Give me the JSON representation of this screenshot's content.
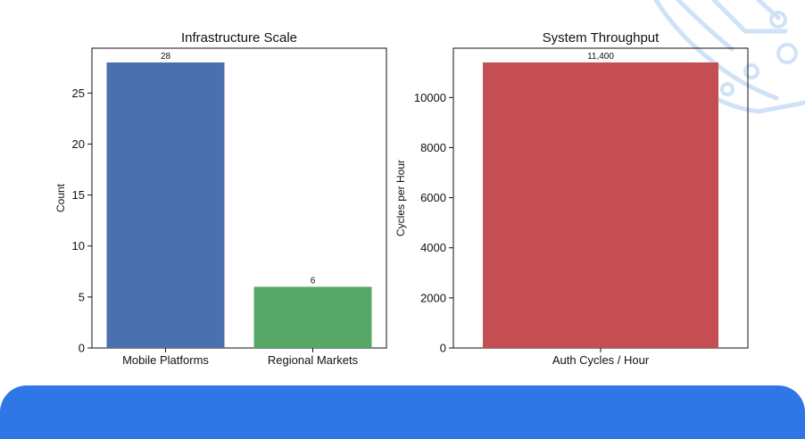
{
  "chart_data": [
    {
      "type": "bar",
      "title": "Infrastructure Scale",
      "xlabel": "",
      "ylabel": "Count",
      "categories": [
        "Mobile Platforms",
        "Regional Markets"
      ],
      "values": [
        28,
        6
      ],
      "data_labels": [
        "28",
        "6"
      ],
      "colors": [
        "#4a71ae",
        "#55a868"
      ],
      "ylim": [
        0,
        29.4
      ],
      "yticks": [
        0,
        5,
        10,
        15,
        20,
        25
      ],
      "grid": false
    },
    {
      "type": "bar",
      "title": "System Throughput",
      "xlabel": "",
      "ylabel": "Cycles per Hour",
      "categories": [
        "Auth Cycles / Hour"
      ],
      "values": [
        11400
      ],
      "data_labels": [
        "11,400"
      ],
      "colors": [
        "#c44e52"
      ],
      "ylim": [
        0,
        11970
      ],
      "yticks": [
        0,
        2000,
        4000,
        6000,
        8000,
        10000
      ],
      "grid": false
    }
  ]
}
